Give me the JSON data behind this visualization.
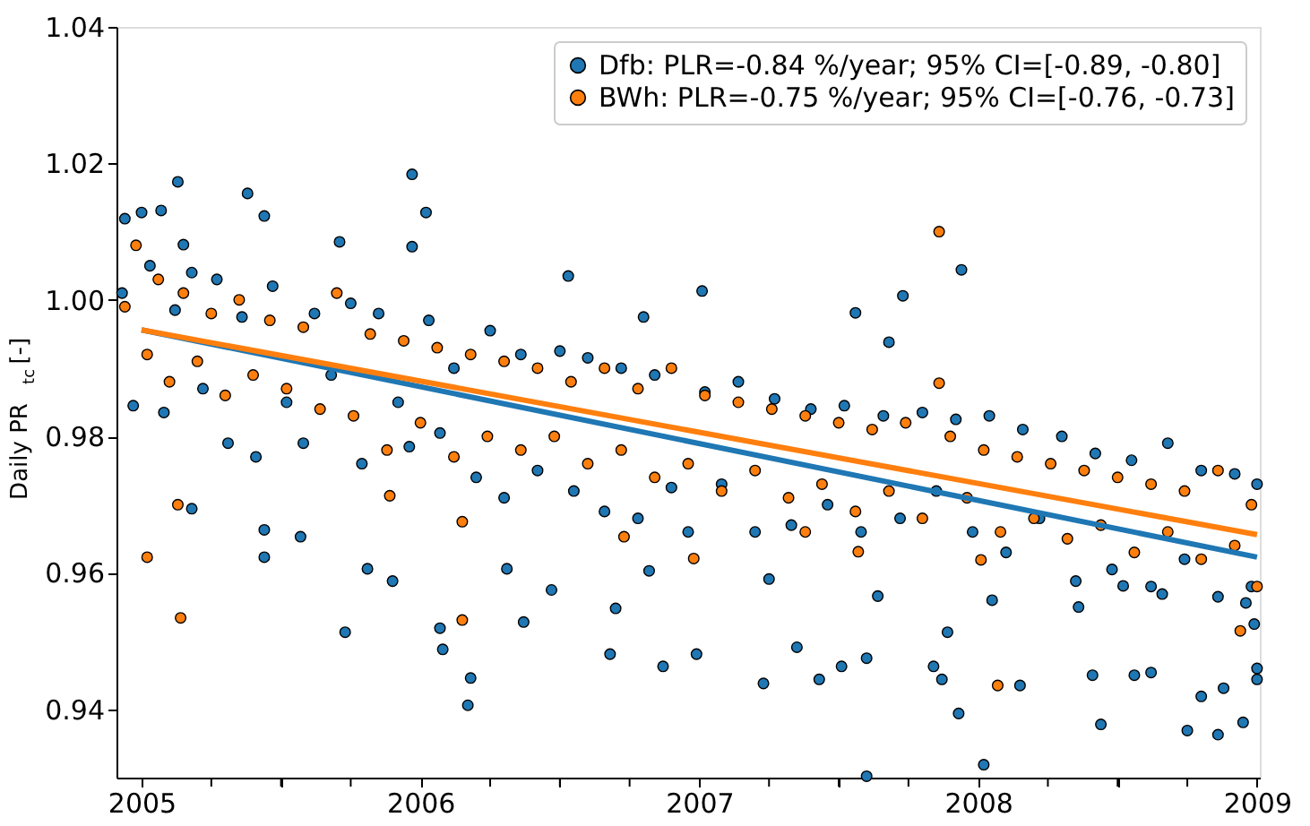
{
  "chart_data": {
    "type": "scatter",
    "ylabel": "Daily PR$_{tc}$ [-]",
    "xlim": [
      2004.91,
      2009.01
    ],
    "ylim": [
      0.93,
      1.04
    ],
    "xticks": [
      2005,
      {
        "value": 2005.25,
        "label": null
      },
      {
        "value": 2005.5,
        "label": null
      },
      {
        "value": 2005.75,
        "label": null
      },
      2006,
      {
        "value": 2006.25,
        "label": null
      },
      {
        "value": 2006.5,
        "label": null
      },
      {
        "value": 2006.75,
        "label": null
      },
      2007,
      {
        "value": 2007.25,
        "label": null
      },
      {
        "value": 2007.5,
        "label": null
      },
      {
        "value": 2007.75,
        "label": null
      },
      2008,
      {
        "value": 2008.25,
        "label": null
      },
      {
        "value": 2008.5,
        "label": null
      },
      {
        "value": 2008.75,
        "label": null
      },
      2009
    ],
    "yticks": [
      {
        "value": 0.94,
        "label": "0.94"
      },
      {
        "value": 0.96,
        "label": "0.96"
      },
      {
        "value": 0.98,
        "label": "0.98"
      },
      {
        "value": 1.0,
        "label": "1.00"
      },
      {
        "value": 1.02,
        "label": "1.02"
      },
      {
        "value": 1.04,
        "label": "1.04"
      }
    ],
    "grid": false,
    "legend": "top right",
    "marker": "circle",
    "series": [
      {
        "name": "Dfb: PLR=-0.84 %/year; 95% CI=[-0.89, -0.80]",
        "color": "#1f77b4",
        "x": [
          2004.93,
          2004.97,
          2005.03,
          2005.08,
          2005.12,
          2005.18,
          2005.22,
          2005.27,
          2005.31,
          2005.36,
          2005.41,
          2005.47,
          2005.52,
          2005.58,
          2005.62,
          2005.68,
          2005.75,
          2005.79,
          2005.85,
          2005.92,
          2005.96,
          2006.03,
          2006.07,
          2006.12,
          2006.2,
          2006.25,
          2006.3,
          2006.36,
          2006.42,
          2006.5,
          2006.55,
          2006.6,
          2006.66,
          2006.72,
          2006.78,
          2006.84,
          2006.9,
          2006.96,
          2007.02,
          2007.08,
          2007.14,
          2007.2,
          2007.27,
          2007.33,
          2007.4,
          2007.46,
          2007.52,
          2007.58,
          2007.66,
          2007.72,
          2007.8,
          2007.85,
          2007.92,
          2007.98,
          2008.04,
          2008.1,
          2008.16,
          2008.22,
          2008.3,
          2008.36,
          2008.42,
          2008.48,
          2008.55,
          2008.62,
          2008.68,
          2008.74,
          2008.8,
          2008.86,
          2008.92,
          2008.98,
          2009.0,
          2009.0,
          2004.94,
          2005.0,
          2005.07,
          2005.13,
          2005.15,
          2005.18,
          2005.38,
          2005.44,
          2005.44,
          2005.44,
          2005.57,
          2005.71,
          2005.73,
          2005.81,
          2005.9,
          2005.97,
          2005.97,
          2006.02,
          2006.07,
          2006.08,
          2006.17,
          2006.18,
          2006.31,
          2006.37,
          2006.47,
          2006.53,
          2006.68,
          2006.7,
          2006.8,
          2006.82,
          2006.87,
          2006.99,
          2007.01,
          2007.23,
          2007.25,
          2007.35,
          2007.43,
          2007.51,
          2007.56,
          2007.6,
          2007.6,
          2007.64,
          2007.73,
          2007.68,
          2007.84,
          2007.87,
          2007.89,
          2007.94,
          2007.93,
          2008.02,
          2008.05,
          2008.15,
          2008.35,
          2008.41,
          2008.44,
          2008.52,
          2008.56,
          2008.62,
          2008.66,
          2008.75,
          2008.8,
          2008.86,
          2008.88,
          2008.95,
          2008.96,
          2009.0,
          2008.99
        ],
        "values": [
          1.001,
          0.9845,
          1.005,
          0.9835,
          0.9985,
          1.004,
          0.987,
          1.003,
          0.979,
          0.9975,
          0.977,
          1.002,
          0.985,
          0.979,
          0.998,
          0.989,
          0.9995,
          0.976,
          0.998,
          0.985,
          0.9785,
          0.997,
          0.9805,
          0.99,
          0.974,
          0.9955,
          0.971,
          0.992,
          0.975,
          0.9925,
          0.972,
          0.9915,
          0.969,
          0.99,
          0.968,
          0.989,
          0.9725,
          0.966,
          0.9865,
          0.973,
          0.988,
          0.966,
          0.9855,
          0.967,
          0.984,
          0.97,
          0.9845,
          0.966,
          0.983,
          0.968,
          0.9835,
          0.972,
          0.9825,
          0.966,
          0.983,
          0.963,
          0.981,
          0.968,
          0.98,
          0.955,
          0.9775,
          0.9605,
          0.9765,
          0.958,
          0.979,
          0.962,
          0.975,
          0.9565,
          0.9745,
          0.958,
          0.973,
          0.946,
          1.0119,
          1.0128,
          1.0131,
          1.0173,
          1.0081,
          0.9694,
          1.0156,
          1.0123,
          0.9663,
          0.9623,
          0.9653,
          1.0085,
          0.9513,
          0.9606,
          0.9588,
          1.0184,
          1.0078,
          1.0128,
          0.9519,
          0.9488,
          0.9406,
          0.9446,
          0.9606,
          0.9528,
          0.9575,
          1.0035,
          0.9481,
          0.9548,
          0.9975,
          0.9603,
          0.9463,
          0.9481,
          1.0013,
          0.9438,
          0.9591,
          0.9491,
          0.9444,
          0.9463,
          0.9981,
          0.9475,
          0.9302,
          0.9566,
          1.0006,
          0.9938,
          0.9463,
          0.9444,
          0.9513,
          1.0044,
          0.9394,
          0.9319,
          0.956,
          0.9435,
          0.9588,
          0.945,
          0.9378,
          0.9581,
          0.945,
          0.9454,
          0.9569,
          0.9369,
          0.9419,
          0.9363,
          0.9431,
          0.9381,
          0.9556,
          0.9444,
          0.9525
        ]
      },
      {
        "name": "BWh: PLR=-0.75 %/year; 95% CI=[-0.76, -0.73]",
        "color": "#ff7f0e",
        "x": [
          2004.94,
          2004.98,
          2005.02,
          2005.06,
          2005.1,
          2005.15,
          2005.2,
          2005.25,
          2005.3,
          2005.35,
          2005.4,
          2005.46,
          2005.52,
          2005.58,
          2005.64,
          2005.7,
          2005.76,
          2005.82,
          2005.88,
          2005.94,
          2006.0,
          2006.06,
          2006.12,
          2006.18,
          2006.24,
          2006.3,
          2006.36,
          2006.42,
          2006.48,
          2006.54,
          2006.6,
          2006.66,
          2006.72,
          2006.78,
          2006.84,
          2006.9,
          2006.96,
          2007.02,
          2007.08,
          2007.14,
          2007.2,
          2007.26,
          2007.32,
          2007.38,
          2007.44,
          2007.5,
          2007.56,
          2007.62,
          2007.68,
          2007.74,
          2007.8,
          2007.9,
          2007.96,
          2008.02,
          2008.08,
          2008.14,
          2008.2,
          2008.26,
          2008.32,
          2008.38,
          2008.44,
          2008.5,
          2008.56,
          2008.62,
          2008.68,
          2008.74,
          2008.8,
          2008.86,
          2008.92,
          2008.98,
          2009.0,
          2005.02,
          2005.14,
          2005.13,
          2005.89,
          2006.15,
          2006.15,
          2006.73,
          2006.98,
          2007.38,
          2007.57,
          2007.86,
          2007.86,
          2008.01,
          2008.07,
          2008.94
        ],
        "values": [
          0.999,
          1.008,
          0.992,
          1.003,
          0.988,
          1.001,
          0.991,
          0.998,
          0.986,
          1.0,
          0.989,
          0.997,
          0.987,
          0.996,
          0.984,
          1.001,
          0.983,
          0.995,
          0.978,
          0.994,
          0.982,
          0.993,
          0.977,
          0.992,
          0.98,
          0.991,
          0.978,
          0.99,
          0.98,
          0.988,
          0.976,
          0.99,
          0.978,
          0.987,
          0.974,
          0.99,
          0.976,
          0.986,
          0.972,
          0.985,
          0.975,
          0.984,
          0.971,
          0.983,
          0.973,
          0.982,
          0.969,
          0.981,
          0.972,
          0.982,
          0.968,
          0.98,
          0.971,
          0.978,
          0.966,
          0.977,
          0.968,
          0.976,
          0.965,
          0.975,
          0.967,
          0.974,
          0.963,
          0.973,
          0.966,
          0.972,
          0.962,
          0.975,
          0.964,
          0.97,
          0.958,
          0.9623,
          0.9534,
          0.97,
          0.9713,
          0.9531,
          0.9675,
          0.9653,
          0.9621,
          0.966,
          0.9631,
          1.01,
          0.9878,
          0.9619,
          0.9435,
          0.9515
        ]
      },
      {
        "type": "line",
        "color": "#1f77b4",
        "marker": "none",
        "x": [
          2005,
          2009
        ],
        "values": [
          0.9956,
          0.9623
        ]
      },
      {
        "type": "line",
        "color": "#ff7f0e",
        "marker": "none",
        "x": [
          2005,
          2009
        ],
        "values": [
          0.9956,
          0.9656
        ]
      }
    ]
  }
}
